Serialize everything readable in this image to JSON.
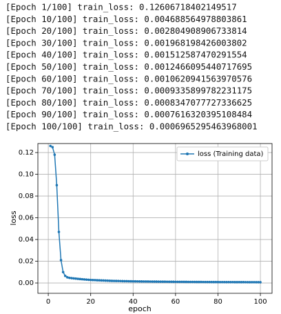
{
  "log_lines": [
    "[Epoch 1/100] train_loss: 0.12606718402149517",
    "[Epoch 10/100] train_loss: 0.004688564978803861",
    "[Epoch 20/100] train_loss: 0.002804908906733814",
    "[Epoch 30/100] train_loss: 0.001968198426003802",
    "[Epoch 40/100] train_loss: 0.001512587470291554",
    "[Epoch 50/100] train_loss: 0.0012466095440717695",
    "[Epoch 60/100] train_loss: 0.0010620941563970576",
    "[Epoch 70/100] train_loss: 0.0009335899782231175",
    "[Epoch 80/100] train_loss: 0.0008347077727336625",
    "[Epoch 90/100] train_loss: 0.0007616320395108484",
    "[Epoch 100/100] train_loss: 0.0006965295463968001"
  ],
  "chart_data": {
    "type": "line",
    "xlabel": "epoch",
    "ylabel": "loss",
    "grid": true,
    "legend": "upper right",
    "xlim": [
      -4.9,
      105.5
    ],
    "ylim": [
      -0.0095,
      0.1283
    ],
    "xticks": [
      0,
      20,
      40,
      60,
      80,
      100
    ],
    "yticks": [
      {
        "value": 0,
        "label": "0.00"
      },
      {
        "value": 0.02,
        "label": "0.02"
      },
      {
        "value": 0.04,
        "label": "0.04"
      },
      {
        "value": 0.06,
        "label": "0.06"
      },
      {
        "value": 0.08,
        "label": "0.08"
      },
      {
        "value": 0.1,
        "label": "0.10"
      },
      {
        "value": 0.12,
        "label": "0.12"
      }
    ],
    "x": [
      1,
      2,
      3,
      4,
      5,
      6,
      7,
      8,
      9,
      10,
      11,
      12,
      13,
      14,
      15,
      16,
      17,
      18,
      19,
      20,
      21,
      22,
      23,
      24,
      25,
      26,
      27,
      28,
      29,
      30,
      31,
      32,
      33,
      34,
      35,
      36,
      37,
      38,
      39,
      40,
      41,
      42,
      43,
      44,
      45,
      46,
      47,
      48,
      49,
      50,
      51,
      52,
      53,
      54,
      55,
      56,
      57,
      58,
      59,
      60,
      61,
      62,
      63,
      64,
      65,
      66,
      67,
      68,
      69,
      70,
      71,
      72,
      73,
      74,
      75,
      76,
      77,
      78,
      79,
      80,
      81,
      82,
      83,
      84,
      85,
      86,
      87,
      88,
      89,
      90,
      91,
      92,
      93,
      94,
      95,
      96,
      97,
      98,
      99,
      100
    ],
    "series": [
      {
        "name": "loss (Training data)",
        "color": "#1f77b4",
        "values": [
          0.12606718402149517,
          0.125,
          0.118,
          0.09,
          0.047,
          0.021,
          0.01,
          0.0065,
          0.0052,
          0.004688564978803861,
          0.00445,
          0.00423,
          0.00402,
          0.00382,
          0.00363,
          0.00344,
          0.00327,
          0.00311,
          0.00295,
          0.002804908906733814,
          0.00271,
          0.00261,
          0.00252,
          0.00243,
          0.00235,
          0.00227,
          0.00219,
          0.00211,
          0.00204,
          0.001968198426003802,
          0.00192,
          0.00187,
          0.00182,
          0.00177,
          0.00173,
          0.00168,
          0.00164,
          0.00159,
          0.00155,
          0.001512587470291554,
          0.00148,
          0.00146,
          0.00143,
          0.0014,
          0.00137,
          0.00135,
          0.00132,
          0.0013,
          0.00127,
          0.0012466095440717695,
          0.00123,
          0.00121,
          0.00119,
          0.00117,
          0.00115,
          0.00113,
          0.00111,
          0.0011,
          0.00108,
          0.0010620941563970576,
          0.00105,
          0.00104,
          0.00102,
          0.00101,
          0.000996,
          0.000983,
          0.000971,
          0.000958,
          0.000946,
          0.0009335899782231175,
          0.000924,
          0.000913,
          0.000903,
          0.000893,
          0.000883,
          0.000873,
          0.000864,
          0.000854,
          0.000845,
          0.0008347077727336625,
          0.000827,
          0.00082,
          0.000812,
          0.000805,
          0.000798,
          0.00079,
          0.000783,
          0.000776,
          0.000769,
          0.0007616320395108484,
          0.000755,
          0.000748,
          0.000742,
          0.000735,
          0.000729,
          0.000722,
          0.000716,
          0.000709,
          0.000703,
          0.0006965295463968001
        ]
      }
    ]
  }
}
